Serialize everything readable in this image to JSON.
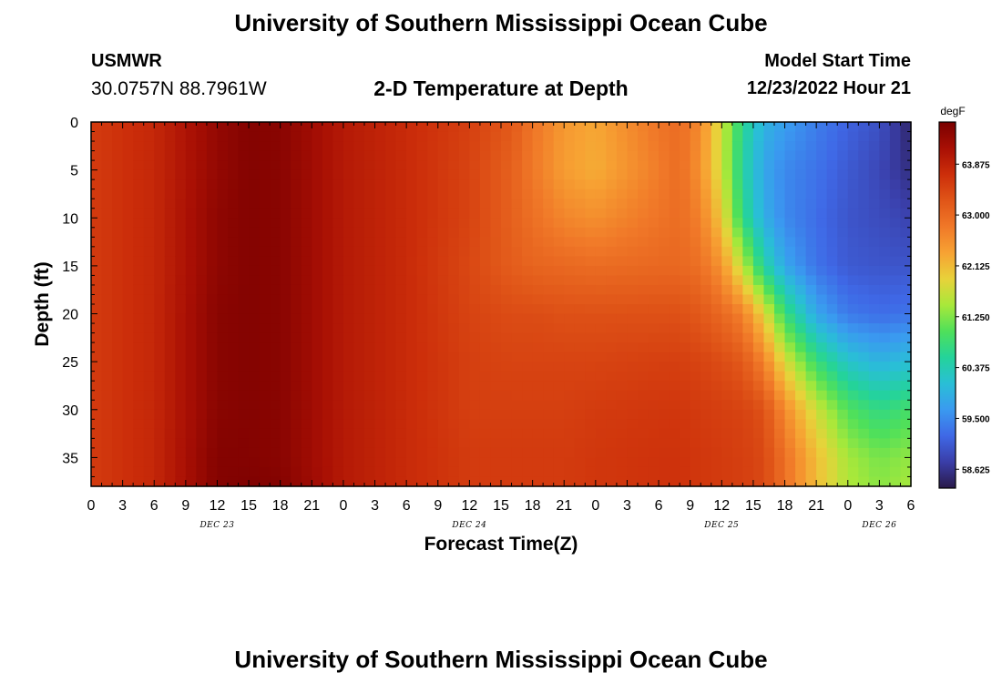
{
  "page": {
    "main_title": "University of Southern Mississippi Ocean Cube",
    "station_code": "USMWR",
    "station_coords": "30.0757N  88.7961W",
    "model_label": "Model Start Time",
    "model_time": "12/23/2022 Hour 21",
    "bottom_title": "University of Southern Mississippi Ocean Cube"
  },
  "chart_data": {
    "type": "heatmap",
    "title": "2-D Temperature at Depth",
    "xlabel": "Forecast Time(Z)",
    "ylabel": "Depth (ft)",
    "x_ticks": [
      "0",
      "3",
      "6",
      "9",
      "12",
      "15",
      "18",
      "21",
      "0",
      "3",
      "6",
      "9",
      "12",
      "15",
      "18",
      "21",
      "0",
      "3",
      "6",
      "9",
      "12",
      "15",
      "18",
      "21",
      "0",
      "3",
      "6"
    ],
    "x_tick_hours": [
      0,
      3,
      6,
      9,
      12,
      15,
      18,
      21,
      24,
      27,
      30,
      33,
      36,
      39,
      42,
      45,
      48,
      51,
      54,
      57,
      60,
      63,
      66,
      69,
      72,
      75,
      78
    ],
    "day_labels": [
      {
        "label": "DEC 23",
        "hour": 12
      },
      {
        "label": "DEC 24",
        "hour": 36
      },
      {
        "label": "DEC 25",
        "hour": 60
      },
      {
        "label": "DEC 26",
        "hour": 75
      }
    ],
    "xlim_hours": [
      0,
      78
    ],
    "ylim_ft": [
      0,
      38
    ],
    "y_ticks": [
      0,
      5,
      10,
      15,
      20,
      25,
      30,
      35
    ],
    "colorbar": {
      "unit": "degF",
      "tick_labels": [
        "63.875",
        "63.000",
        "62.125",
        "61.250",
        "60.375",
        "59.500",
        "58.625"
      ],
      "tick_values": [
        63.875,
        63.0,
        62.125,
        61.25,
        60.375,
        59.5,
        58.625
      ],
      "range": [
        58.3,
        64.6
      ],
      "colors": [
        "#2a1a4a",
        "#3a3ea8",
        "#3f68e6",
        "#3a9af0",
        "#29bfd6",
        "#24d39a",
        "#4fe05a",
        "#a8e83a",
        "#e8d23a",
        "#f7a233",
        "#f07828",
        "#e05518",
        "#cc2e0a",
        "#a80f04",
        "#7a0000"
      ]
    },
    "depths_ft": [
      0,
      5,
      10,
      15,
      20,
      25,
      30,
      35,
      38
    ],
    "hour_axis": [
      0,
      6,
      12,
      15,
      18,
      24,
      30,
      36,
      40,
      42,
      45,
      48,
      54,
      56,
      58,
      60,
      62,
      64,
      66,
      69,
      72,
      75,
      78
    ],
    "temperature_degF": [
      [
        63.55,
        63.55,
        63.55,
        63.55,
        63.55,
        63.55,
        63.55,
        63.55,
        63.55
      ],
      [
        63.8,
        63.8,
        63.8,
        63.8,
        63.8,
        63.8,
        63.8,
        63.8,
        63.8
      ],
      [
        64.35,
        64.35,
        64.4,
        64.4,
        64.45,
        64.45,
        64.45,
        64.5,
        64.5
      ],
      [
        64.5,
        64.5,
        64.5,
        64.5,
        64.5,
        64.5,
        64.5,
        64.5,
        64.55
      ],
      [
        64.45,
        64.45,
        64.45,
        64.45,
        64.45,
        64.45,
        64.45,
        64.45,
        64.5
      ],
      [
        64.0,
        64.0,
        64.0,
        64.0,
        64.0,
        64.0,
        64.0,
        64.0,
        64.0
      ],
      [
        63.75,
        63.75,
        63.75,
        63.75,
        63.75,
        63.75,
        63.75,
        63.75,
        63.75
      ],
      [
        63.5,
        63.45,
        63.45,
        63.4,
        63.45,
        63.5,
        63.5,
        63.55,
        63.55
      ],
      [
        63.2,
        63.1,
        63.1,
        63.15,
        63.35,
        63.45,
        63.5,
        63.55,
        63.55
      ],
      [
        62.85,
        62.8,
        62.9,
        63.05,
        63.35,
        63.45,
        63.5,
        63.55,
        63.55
      ],
      [
        62.45,
        62.4,
        62.65,
        63.0,
        63.3,
        63.45,
        63.5,
        63.55,
        63.55
      ],
      [
        62.3,
        62.25,
        62.55,
        62.95,
        63.3,
        63.45,
        63.55,
        63.6,
        63.6
      ],
      [
        62.85,
        62.75,
        62.85,
        63.0,
        63.3,
        63.5,
        63.6,
        63.65,
        63.65
      ],
      [
        62.95,
        62.95,
        62.95,
        63.0,
        63.3,
        63.5,
        63.6,
        63.65,
        63.65
      ],
      [
        62.6,
        62.5,
        62.7,
        62.9,
        63.2,
        63.45,
        63.55,
        63.6,
        63.6
      ],
      [
        61.7,
        61.7,
        62.0,
        62.5,
        63.0,
        63.35,
        63.5,
        63.55,
        63.55
      ],
      [
        60.6,
        60.5,
        60.7,
        61.6,
        62.7,
        63.2,
        63.45,
        63.5,
        63.5
      ],
      [
        59.95,
        59.8,
        59.9,
        60.5,
        61.9,
        62.7,
        63.3,
        63.4,
        63.4
      ],
      [
        59.7,
        59.5,
        59.5,
        59.8,
        60.8,
        61.8,
        62.6,
        62.9,
        62.9
      ],
      [
        59.4,
        59.3,
        59.25,
        59.3,
        59.8,
        60.8,
        61.7,
        62.1,
        62.1
      ],
      [
        59.15,
        59.05,
        59.0,
        59.05,
        59.35,
        60.2,
        61.0,
        61.45,
        61.5
      ],
      [
        58.95,
        58.85,
        58.9,
        59.0,
        59.25,
        59.95,
        60.7,
        61.2,
        61.3
      ],
      [
        58.45,
        58.55,
        58.8,
        59.0,
        59.3,
        60.1,
        60.9,
        61.35,
        61.45
      ]
    ]
  }
}
